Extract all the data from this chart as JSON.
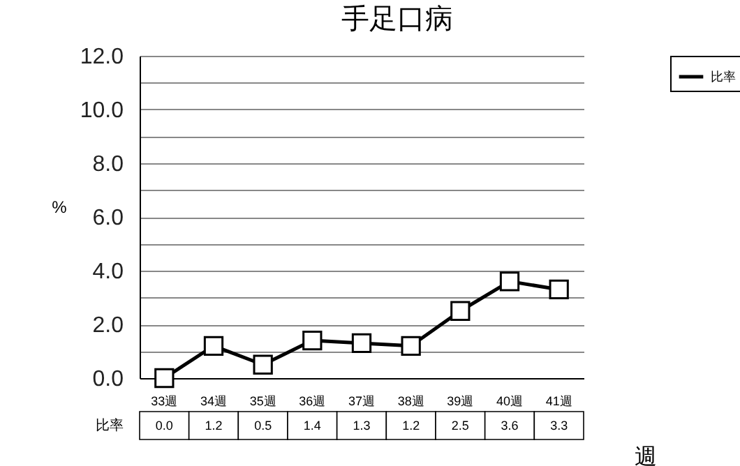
{
  "chart_data": {
    "type": "line",
    "title": "手足口病",
    "xlabel": "週",
    "ylabel": "%",
    "categories": [
      "33週",
      "34週",
      "35週",
      "36週",
      "37週",
      "38週",
      "39週",
      "40週",
      "41週"
    ],
    "series": [
      {
        "name": "比率",
        "color": "#000000",
        "values": [
          0.0,
          1.2,
          0.5,
          1.4,
          1.3,
          1.2,
          2.5,
          3.6,
          3.3
        ],
        "value_labels": [
          "0.0",
          "1.2",
          "0.5",
          "1.4",
          "1.3",
          "1.2",
          "2.5",
          "3.6",
          "3.3"
        ]
      }
    ],
    "ylim": [
      0,
      12
    ],
    "yticks": [
      "0.0",
      {
        "value": 1,
        "label": null
      },
      "2.0",
      {
        "value": 3,
        "label": null
      },
      "4.0",
      {
        "value": 5,
        "label": null
      },
      "6.0",
      {
        "value": 7,
        "label": null
      },
      "8.0",
      {
        "value": 9,
        "label": null
      },
      "10.0",
      {
        "value": 11,
        "label": null
      },
      "12.0"
    ],
    "grid": true,
    "legend": "top right",
    "marker": "square",
    "line_style": "solid"
  }
}
